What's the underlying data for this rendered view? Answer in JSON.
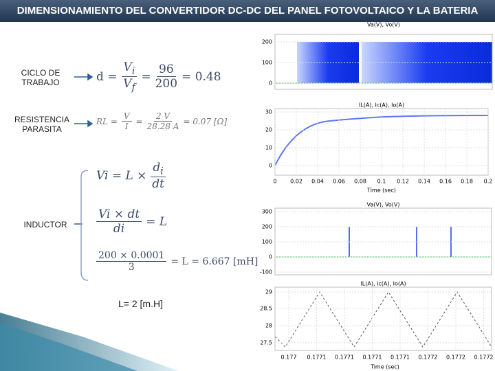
{
  "title": "DIMENSIONAMIENTO DEL CONVERTIDOR DC-DC DEL PANEL FOTOVOLTAICO Y LA BATERIA",
  "labels": {
    "duty": "CICLO DE TRABAJO",
    "resistance": "RESISTENCIA PARASITA",
    "inductor": "INDUCTOR"
  },
  "equations": {
    "duty": {
      "lhs": "d =",
      "num": "V",
      "num_sub": "i",
      "den": "V",
      "den_sub": "f",
      "eq": "=",
      "num2": "96",
      "den2": "200",
      "result": "= 0.48"
    },
    "resistance": {
      "lhs": "RL =",
      "num": "V",
      "den": "I",
      "eq": "=",
      "num2": "2 V",
      "den2": "28.28 A",
      "result": "= 0.07 [Ω]"
    },
    "inductor1": {
      "lhs": "Vi = L ×",
      "num": "d",
      "num_sub": "i",
      "den": "dt"
    },
    "inductor2": {
      "num": "Vi × dt",
      "den": "di",
      "result": "= L"
    },
    "inductor3": {
      "num": "200 × 0.0001",
      "den": "3",
      "result": "= L = 6.667 [mH]"
    }
  },
  "note": "L= 2 [m.H]",
  "plots": [
    {
      "title": "Va(V), Vo(V)",
      "yticks": [
        "200",
        "100",
        "0"
      ]
    },
    {
      "title": "IL(A), Ic(A), Io(A)",
      "yticks": [
        "30",
        "20",
        "10",
        "0"
      ],
      "xticks": [
        "0",
        "0.02",
        "0.04",
        "0.06",
        "0.08",
        "0.1",
        "0.12",
        "0.14",
        "0.16",
        "0.18",
        "0.2"
      ],
      "xlabel": "Time (sec)"
    },
    {
      "title": "Va(V), Vo(V)",
      "yticks": [
        "300",
        "200",
        "100",
        "0",
        "-100"
      ]
    },
    {
      "title": "IL(A), Ic(A), Io(A)",
      "yticks": [
        "29",
        "28.5",
        "28",
        "27.5"
      ],
      "xticks": [
        "0.177",
        "0.1771",
        "0.1771",
        "0.1771",
        "0.1771",
        "0.1772",
        "0.1772",
        "0.1772"
      ],
      "xlabel": "Time (sec)"
    }
  ]
}
